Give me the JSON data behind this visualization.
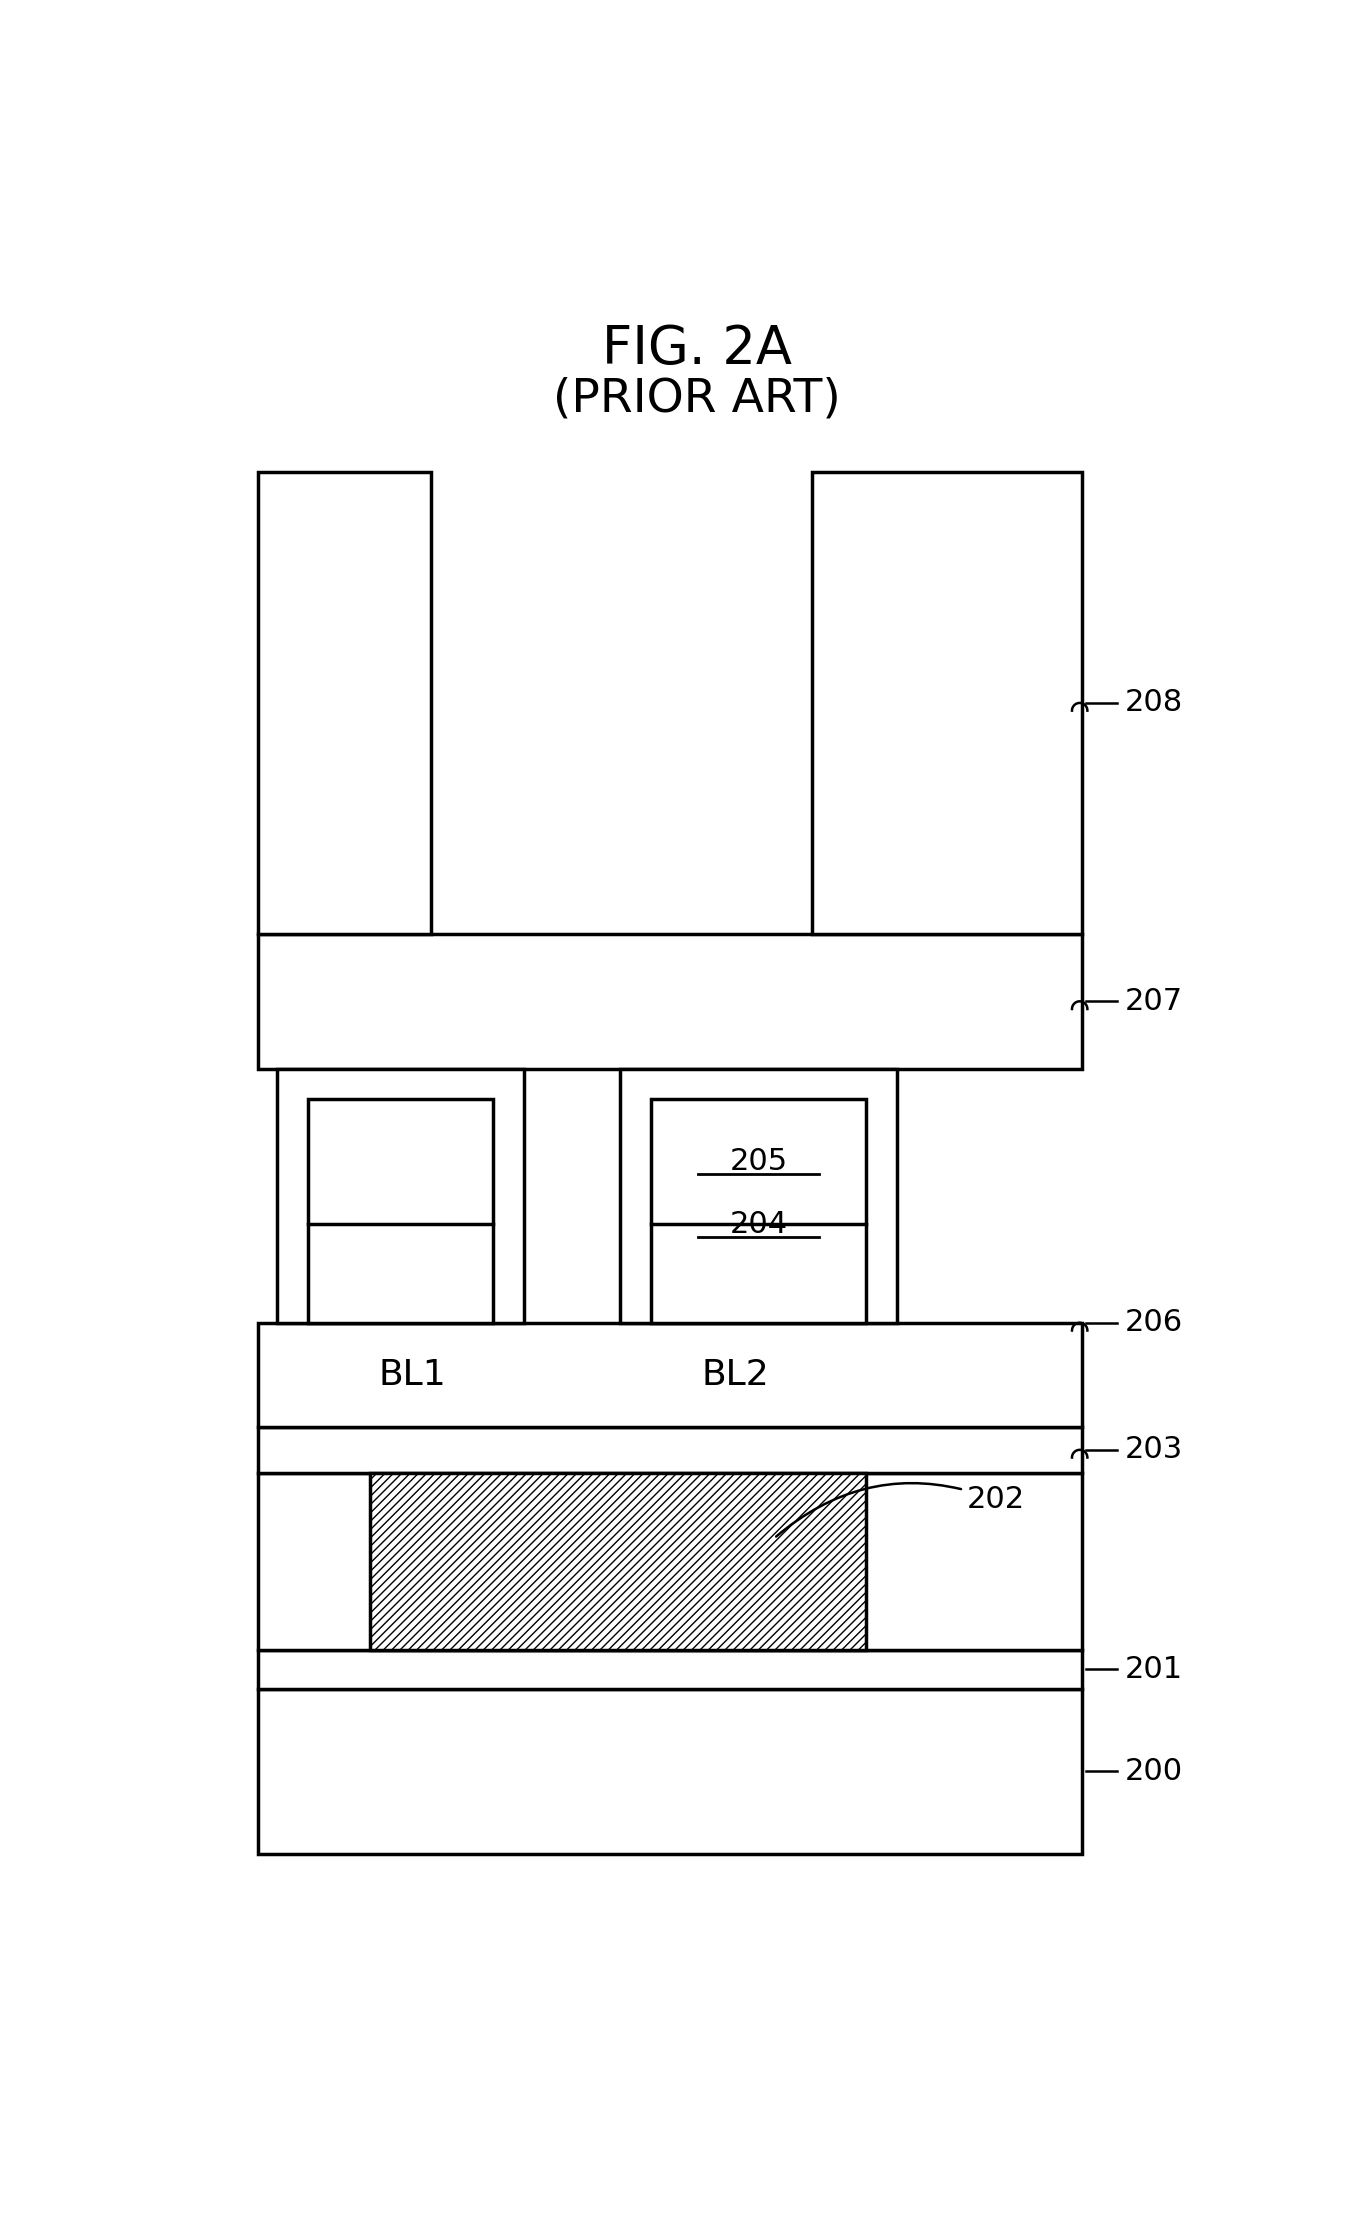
{
  "title_line1": "FIG. 2A",
  "title_line2": "(PRIOR ART)",
  "background_color": "#ffffff",
  "line_color": "#000000",
  "fig_width": 13.6,
  "fig_height": 22.26
}
